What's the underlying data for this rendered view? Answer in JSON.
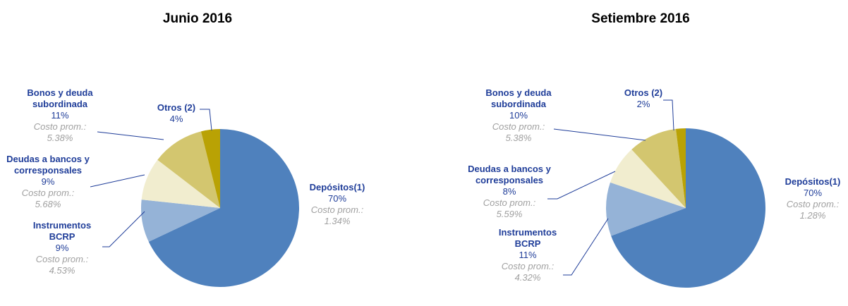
{
  "chart_data": [
    {
      "type": "pie",
      "title": "Junio 2016",
      "categories": [
        "Depósitos(1)",
        "Instrumentos BCRP",
        "Deudas a bancos y corresponsales",
        "Bonos y deuda subordinada",
        "Otros (2)"
      ],
      "values": [
        70,
        9,
        9,
        11,
        4
      ],
      "value_labels": [
        "70%",
        "9%",
        "9%",
        "11%",
        "4%"
      ],
      "cost_caption": "Costo prom.:",
      "cost_labels": [
        "1.34%",
        "4.53%",
        "5.68%",
        "5.38%",
        null
      ],
      "colors": [
        "#4f81bd",
        "#95b3d7",
        "#f1edcf",
        "#d3c66f",
        "#b9a204"
      ]
    },
    {
      "type": "pie",
      "title": "Setiembre 2016",
      "categories": [
        "Depósitos(1)",
        "Instrumentos BCRP",
        "Deudas a bancos y corresponsales",
        "Bonos y deuda subordinada",
        "Otros (2)"
      ],
      "values": [
        70,
        11,
        8,
        10,
        2
      ],
      "value_labels": [
        "70%",
        "11%",
        "8%",
        "10%",
        "2%"
      ],
      "cost_caption": "Costo prom.:",
      "cost_labels": [
        "1.28%",
        "4.32%",
        "5.59%",
        "5.38%",
        null
      ],
      "colors": [
        "#4f81bd",
        "#95b3d7",
        "#f1edcf",
        "#d3c66f",
        "#b9a204"
      ]
    }
  ]
}
